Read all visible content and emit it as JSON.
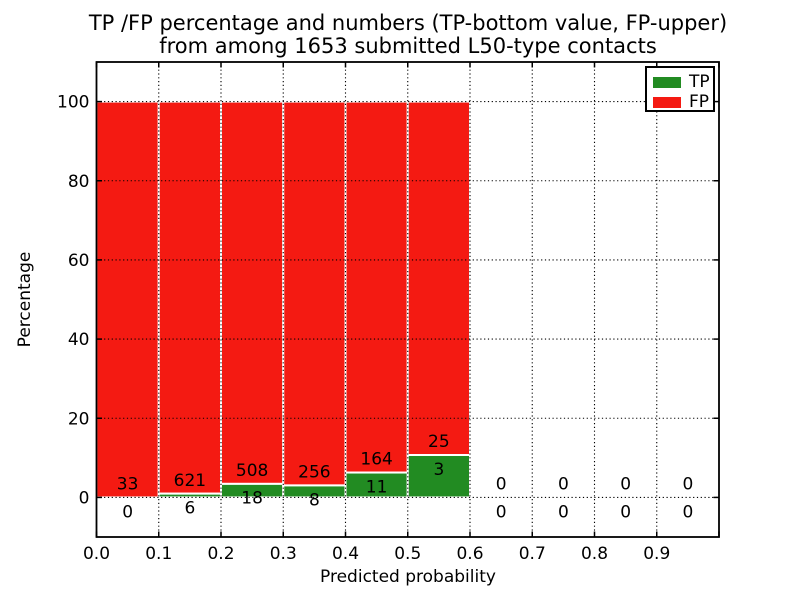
{
  "title": {
    "line1": "TP /FP percentage and numbers (TP-bottom value, FP-upper)",
    "line2": "from among 1653 submitted L50-type contacts"
  },
  "axes": {
    "xlabel": "Predicted probability",
    "ylabel": "Percentage",
    "x_tick_labels": [
      "0.0",
      "0.1",
      "0.2",
      "0.3",
      "0.4",
      "0.5",
      "0.6",
      "0.7",
      "0.8",
      "0.9"
    ],
    "y_tick_labels": [
      "0",
      "20",
      "40",
      "60",
      "80",
      "100"
    ]
  },
  "legend": {
    "items": [
      {
        "label": "TP",
        "color": "#228b22"
      },
      {
        "label": "FP",
        "color": "#f41a12"
      }
    ]
  },
  "colors": {
    "tp": "#228b22",
    "fp": "#f41a12",
    "bar_edge": "#ffffff",
    "grid": "#000000",
    "axis": "#000000",
    "text": "#000000",
    "background": "#ffffff"
  },
  "chart_data": {
    "type": "bar",
    "stacked": true,
    "title": "TP /FP percentage and numbers (TP-bottom value, FP-upper) from among 1653 submitted L50-type contacts",
    "xlabel": "Predicted probability",
    "ylabel": "Percentage",
    "categories": [
      "0.0-0.1",
      "0.1-0.2",
      "0.2-0.3",
      "0.3-0.4",
      "0.4-0.5",
      "0.5-0.6",
      "0.6-0.7",
      "0.7-0.8",
      "0.8-0.9",
      "0.9-1.0"
    ],
    "bin_width": 0.1,
    "series": [
      {
        "name": "TP",
        "color": "#228b22",
        "values": [
          0,
          6,
          18,
          8,
          11,
          3,
          0,
          0,
          0,
          0
        ]
      },
      {
        "name": "FP",
        "color": "#f41a12",
        "values": [
          33,
          621,
          508,
          256,
          164,
          25,
          0,
          0,
          0,
          0
        ]
      }
    ],
    "tp_percent_per_bin": [
      0,
      0.96,
      3.42,
      3.03,
      6.29,
      10.71,
      0,
      0,
      0,
      0
    ],
    "total_contacts": 1653,
    "xlim": [
      0,
      1.0
    ],
    "ylim": [
      -10,
      110
    ],
    "yticks": [
      0,
      20,
      40,
      60,
      80,
      100
    ],
    "grid": true,
    "grid_style": "dotted",
    "legend_position": "upper right",
    "note": "Each nonzero bin is a 100%-height stacked bar; TP segment percent = TP/(TP+FP)*100. Numeric labels show raw counts (FP above TP)."
  }
}
